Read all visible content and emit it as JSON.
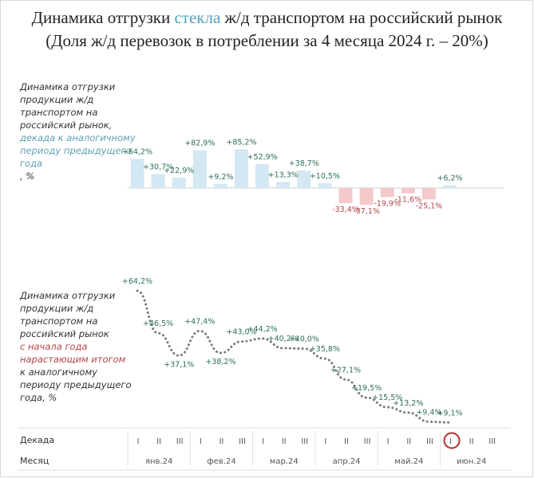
{
  "title": {
    "line1_pre": "Динамика отгрузки ",
    "line1_accent": "стекла",
    "line1_post": " ж/д транспортом на российский рынок",
    "line2": "(Доля ж/д перевозок в потреблении за 4 месяца 2024 г. – 20%)"
  },
  "top_label": {
    "black": [
      "Динамика отгрузки",
      "продукции ж/д",
      "транспортом на",
      "российский рынок,"
    ],
    "blue": [
      "декада к аналогичному",
      "периоду предыдущего",
      "года"
    ],
    "tail": ", %"
  },
  "bottom_label": {
    "black1": [
      "Динамика отгрузки",
      "продукции ж/д",
      "транспортом на",
      "российский рынок"
    ],
    "red": [
      "с начала года",
      "нарастающим итогом"
    ],
    "black2": [
      "к аналогичному",
      "периоду предыдущего",
      "года, %"
    ]
  },
  "axis": {
    "decade_label": "Декада",
    "month_label": "Месяц",
    "decade_ticks": [
      "I",
      "II",
      "III"
    ],
    "months": [
      "янв.24",
      "фев.24",
      "мар.24",
      "апр.24",
      "май.24",
      "июн.24"
    ]
  },
  "colors": {
    "bar_pos": "#d4e8f3",
    "bar_neg": "#f3c9cc",
    "label_pos": "#2f6f59",
    "label_neg": "#b1464c",
    "dotted_line": "#7a7a7a",
    "highlight_circle": "#b03030"
  },
  "chart_data": [
    {
      "type": "bar",
      "categories": [
        "янв I",
        "янв II",
        "янв III",
        "фев I",
        "фев II",
        "фев III",
        "мар I",
        "мар II",
        "мар III",
        "апр I",
        "апр II",
        "апр III",
        "май I",
        "май II",
        "май III",
        "июн I"
      ],
      "values": [
        64.2,
        30.7,
        22.9,
        82.9,
        9.2,
        85.2,
        52.9,
        13.3,
        38.7,
        10.5,
        -33.4,
        -37.1,
        -19.9,
        -11.6,
        -25.1,
        6.2
      ],
      "labels": [
        "+64,2%",
        "+30,7%",
        "+22,9%",
        "+82,9%",
        "+9,2%",
        "+85,2%",
        "+52,9%",
        "+13,3%",
        "+38,7%",
        "+10,5%",
        "-33,4%",
        "-37,1%",
        "-19,9%",
        "-11,6%",
        "-25,1%",
        "+6,2%"
      ]
    },
    {
      "type": "line",
      "categories": [
        "янв I",
        "янв II",
        "янв III",
        "фев I",
        "фев II",
        "фев III",
        "мар I",
        "мар II",
        "мар III",
        "апр I",
        "апр II",
        "апр III",
        "май I",
        "май II",
        "май III",
        "июн I"
      ],
      "values": [
        64.2,
        46.5,
        37.1,
        47.4,
        38.2,
        43.0,
        44.2,
        40.2,
        40.0,
        35.8,
        27.1,
        19.5,
        15.5,
        13.2,
        9.4,
        9.1
      ],
      "labels": [
        "+64,2%",
        "+46,5%",
        "+37,1%",
        "+47,4%",
        "+38,2%",
        "+43,0%",
        "+44,2%",
        "+40,2%",
        "+40,0%",
        "+35,8%",
        "+27,1%",
        "+19,5%",
        "+15,5%",
        "+13,2%",
        "+9,4%",
        "+9,1%"
      ],
      "line_style": "dotted"
    }
  ]
}
